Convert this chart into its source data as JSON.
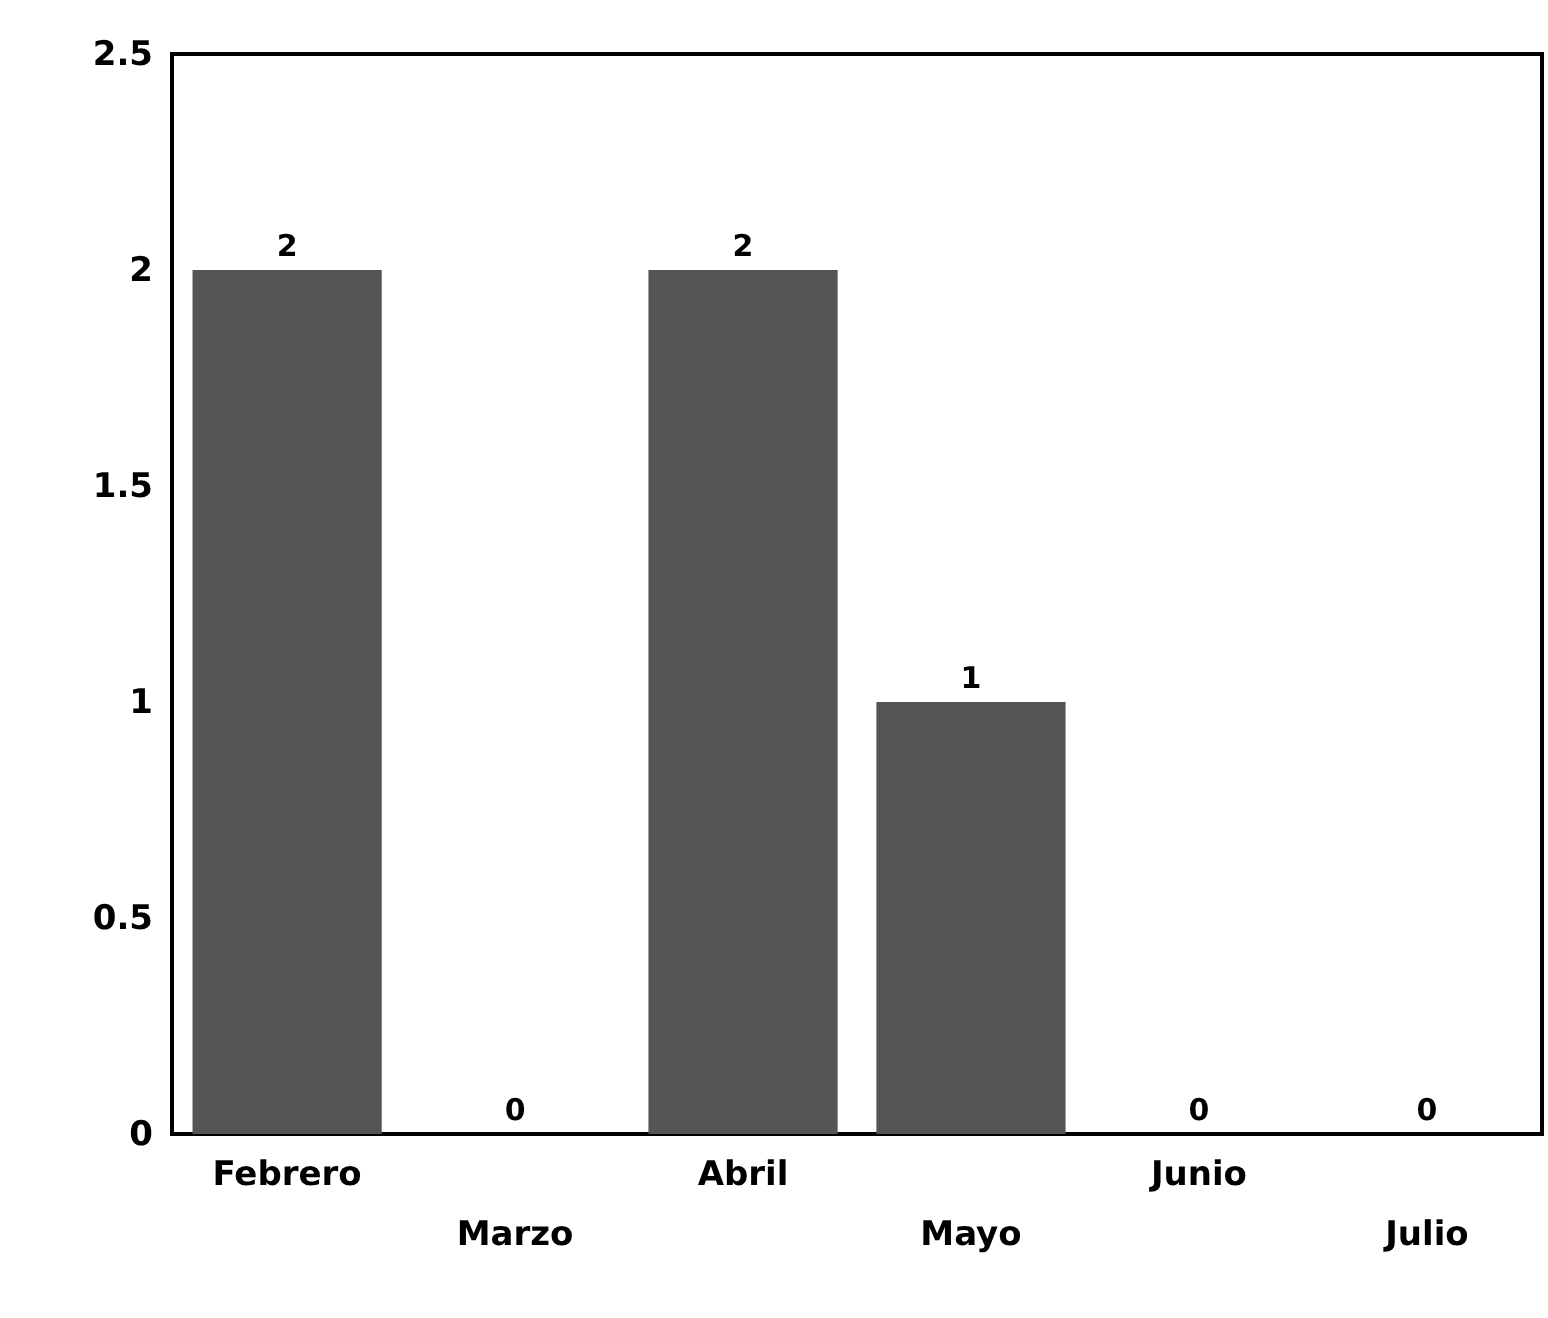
{
  "chart_data": {
    "type": "bar",
    "categories": [
      "Febrero",
      "Marzo",
      "Abril",
      "Mayo",
      "Junio",
      "Julio"
    ],
    "values": [
      2,
      0,
      2,
      1,
      0,
      0
    ],
    "color": "#555555",
    "ylim": [
      0,
      2.5
    ],
    "yticks": [
      0,
      0.5,
      1,
      1.5,
      2,
      2.5
    ],
    "data_labels": true,
    "grid": false
  }
}
